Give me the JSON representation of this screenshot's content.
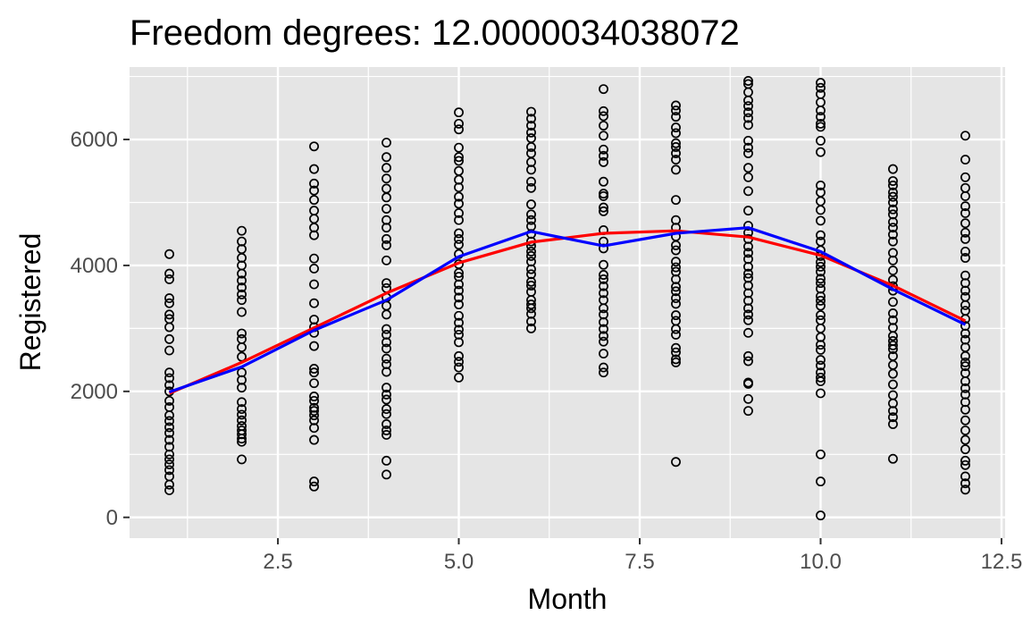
{
  "chart_data": {
    "type": "scatter",
    "title": "Freedom degrees: 12.0000034038072",
    "xlabel": "Month",
    "ylabel": "Registered",
    "xlim": [
      0.45,
      12.55
    ],
    "ylim": [
      -330,
      7150
    ],
    "x_ticks": [
      2.5,
      5.0,
      7.5,
      10.0,
      12.5
    ],
    "x_tick_labels": [
      "2.5",
      "5.0",
      "7.5",
      "10.0",
      "12.5"
    ],
    "y_ticks": [
      0,
      2000,
      4000,
      6000
    ],
    "y_tick_labels": [
      "0",
      "2000",
      "4000",
      "6000"
    ],
    "grid": true,
    "legend": "none",
    "colors": {
      "panel": "#e5e5e5",
      "grid": "#ffffff",
      "points": "#000000",
      "smooth": "#ff0000",
      "means": "#0000ff"
    },
    "points": [
      {
        "x": 1,
        "y": [
          4180,
          3870,
          3780,
          3480,
          3400,
          3220,
          3150,
          3020,
          2830,
          2650,
          2300,
          2210,
          2100,
          2000,
          1850,
          1750,
          1620,
          1530,
          1430,
          1340,
          1230,
          1120,
          1000,
          920,
          840,
          750,
          650,
          520,
          430
        ]
      },
      {
        "x": 2,
        "y": [
          4550,
          4380,
          4260,
          4120,
          4000,
          3870,
          3760,
          3650,
          3540,
          3450,
          3260,
          2920,
          2830,
          2700,
          2550,
          2300,
          2180,
          2060,
          1830,
          1720,
          1630,
          1540,
          1450,
          1380,
          1320,
          1250,
          1200,
          920
        ]
      },
      {
        "x": 3,
        "y": [
          5890,
          5530,
          5300,
          5190,
          5040,
          4870,
          4740,
          4600,
          4480,
          4110,
          3950,
          3700,
          3400,
          3140,
          3020,
          2930,
          2720,
          2360,
          2300,
          2130,
          1920,
          1850,
          1740,
          1690,
          1620,
          1540,
          1420,
          1230,
          570,
          490
        ]
      },
      {
        "x": 4,
        "y": [
          5950,
          5720,
          5550,
          5380,
          5220,
          5080,
          4900,
          4720,
          4600,
          4420,
          4320,
          4080,
          3720,
          3640,
          3490,
          3360,
          3220,
          2990,
          2900,
          2780,
          2680,
          2520,
          2430,
          2310,
          2060,
          1950,
          1870,
          1720,
          1640,
          1480,
          1380,
          1310,
          900,
          680
        ]
      },
      {
        "x": 5,
        "y": [
          6430,
          6250,
          6160,
          5870,
          5720,
          5660,
          5500,
          5360,
          5240,
          5090,
          4980,
          4830,
          4720,
          4510,
          4420,
          4330,
          4180,
          4020,
          3880,
          3820,
          3700,
          3600,
          3490,
          3380,
          3200,
          3090,
          2980,
          2900,
          2780,
          2560,
          2470,
          2380,
          2220
        ]
      },
      {
        "x": 6,
        "y": [
          6440,
          6330,
          6220,
          6110,
          6020,
          5880,
          5780,
          5640,
          5520,
          5330,
          5230,
          4970,
          4810,
          4720,
          4620,
          4500,
          4380,
          4310,
          4220,
          4150,
          4060,
          3940,
          3860,
          3740,
          3680,
          3580,
          3450,
          3380,
          3320,
          3230,
          3110,
          3000
        ]
      },
      {
        "x": 7,
        "y": [
          6800,
          6450,
          6370,
          6220,
          6060,
          5840,
          5740,
          5640,
          5330,
          5140,
          5100,
          4920,
          4860,
          4560,
          4380,
          4270,
          4010,
          3850,
          3780,
          3670,
          3560,
          3450,
          3320,
          3220,
          3100,
          2990,
          2880,
          2790,
          2600,
          2380,
          2300
        ]
      },
      {
        "x": 8,
        "y": [
          6540,
          6460,
          6360,
          6190,
          6100,
          5940,
          5880,
          5780,
          5680,
          5520,
          5040,
          4720,
          4600,
          4460,
          4320,
          4240,
          4060,
          3970,
          3900,
          3780,
          3660,
          3590,
          3480,
          3390,
          3210,
          3120,
          2990,
          2900,
          2690,
          2620,
          2510,
          2460,
          880
        ]
      },
      {
        "x": 9,
        "y": [
          6930,
          6880,
          6750,
          6620,
          6530,
          6430,
          6340,
          6230,
          5980,
          5870,
          5780,
          5550,
          5400,
          5180,
          4870,
          4630,
          4520,
          4420,
          4300,
          4200,
          4100,
          3980,
          3870,
          3800,
          3680,
          3560,
          3440,
          3320,
          3220,
          3130,
          2930,
          2560,
          2480,
          2140,
          2120,
          1880,
          1690
        ]
      },
      {
        "x": 10,
        "y": [
          6900,
          6820,
          6720,
          6590,
          6460,
          6360,
          6250,
          6200,
          5980,
          5800,
          5270,
          5160,
          5020,
          4880,
          4710,
          4480,
          4380,
          4240,
          4150,
          4050,
          3980,
          3900,
          3790,
          3720,
          3630,
          3510,
          3440,
          3360,
          3210,
          3130,
          3000,
          2860,
          2740,
          2660,
          2500,
          2410,
          2300,
          2220,
          2160,
          1970,
          1000,
          570,
          30
        ]
      },
      {
        "x": 11,
        "y": [
          5530,
          5340,
          5270,
          5160,
          5090,
          5000,
          4890,
          4810,
          4690,
          4600,
          4490,
          4380,
          4200,
          4080,
          3920,
          3770,
          3670,
          3600,
          3420,
          3240,
          3130,
          3010,
          2880,
          2800,
          2730,
          2670,
          2560,
          2420,
          2280,
          2110,
          1940,
          1810,
          1690,
          1590,
          1480,
          930
        ]
      },
      {
        "x": 12,
        "y": [
          6060,
          5680,
          5400,
          5230,
          5100,
          4940,
          4830,
          4670,
          4520,
          4420,
          4220,
          4120,
          3840,
          3720,
          3600,
          3500,
          3370,
          3280,
          3150,
          3040,
          2920,
          2820,
          2700,
          2560,
          2460,
          2400,
          2290,
          2160,
          2050,
          1950,
          1830,
          1710,
          1540,
          1380,
          1230,
          1080,
          900,
          830,
          650,
          540,
          440
        ]
      }
    ],
    "series": [
      {
        "type": "line",
        "color": "#ff0000",
        "x": [
          1,
          2,
          3,
          4,
          5,
          6,
          7,
          8,
          9,
          10,
          11,
          12
        ],
        "y": [
          1970,
          2460,
          3010,
          3560,
          4040,
          4370,
          4510,
          4550,
          4450,
          4160,
          3680,
          3120
        ]
      },
      {
        "type": "line",
        "color": "#0000ff",
        "x": [
          1,
          2,
          3,
          4,
          5,
          6,
          7,
          8,
          9,
          10,
          11,
          12
        ],
        "y": [
          1990,
          2390,
          2970,
          3450,
          4140,
          4540,
          4310,
          4510,
          4600,
          4220,
          3620,
          3060
        ]
      }
    ]
  }
}
